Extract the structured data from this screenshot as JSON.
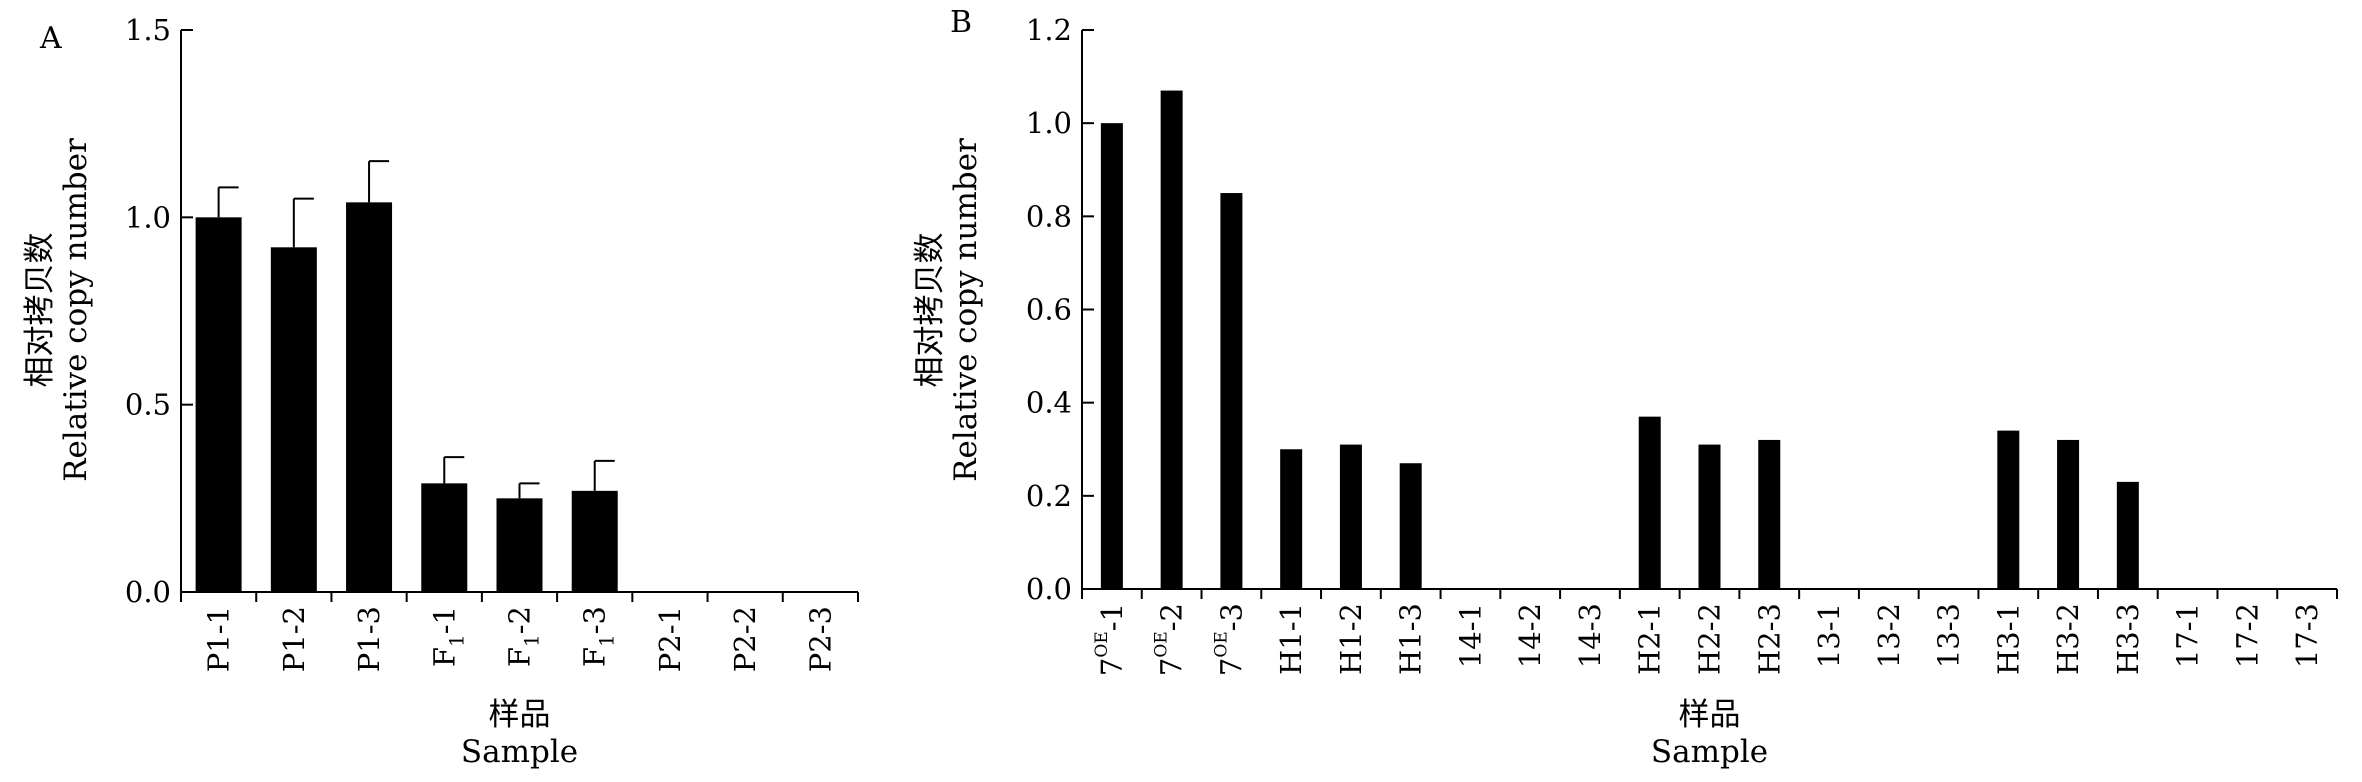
{
  "chart_data": [
    {
      "type": "bar",
      "panel_label": "A",
      "categories": [
        "P1-1",
        "P1-2",
        "P1-3",
        "F1-1",
        "F1-2",
        "F1-3",
        "P2-1",
        "P2-2",
        "P2-3"
      ],
      "values": [
        1.0,
        0.92,
        1.04,
        0.29,
        0.25,
        0.27,
        0,
        0,
        0
      ],
      "errors": [
        0.08,
        0.13,
        0.11,
        0.07,
        0.04,
        0.08,
        0,
        0,
        0
      ],
      "ylim": [
        0,
        1.5
      ],
      "yticks": [
        "0.0",
        "0.5",
        "1.0",
        "1.5"
      ],
      "ylabel_cn": "相对拷贝数",
      "ylabel_en": "Relative copy number",
      "xlabel_cn": "样品",
      "xlabel_en": "Sample",
      "bar_color": "#000000",
      "grid": false
    },
    {
      "type": "bar",
      "panel_label": "B",
      "categories": [
        "7OE-1",
        "7OE-2",
        "7OE-3",
        "H1-1",
        "H1-2",
        "H1-3",
        "14-1",
        "14-2",
        "14-3",
        "H2-1",
        "H2-2",
        "H2-3",
        "13-1",
        "13-2",
        "13-3",
        "H3-1",
        "H3-2",
        "H3-3",
        "17-1",
        "17-2",
        "17-3"
      ],
      "values": [
        1.0,
        1.07,
        0.85,
        0.3,
        0.31,
        0.27,
        0,
        0,
        0,
        0.37,
        0.31,
        0.32,
        0,
        0,
        0,
        0.34,
        0.32,
        0.23,
        0,
        0,
        0
      ],
      "ylim": [
        0,
        1.2
      ],
      "yticks": [
        "0.0",
        "0.2",
        "0.4",
        "0.6",
        "0.8",
        "1.0",
        "1.2"
      ],
      "ylabel_cn": "相对拷贝数",
      "ylabel_en": "Relative copy number",
      "xlabel_cn": "样品",
      "xlabel_en": "Sample",
      "bar_color": "#000000",
      "grid": false
    }
  ]
}
